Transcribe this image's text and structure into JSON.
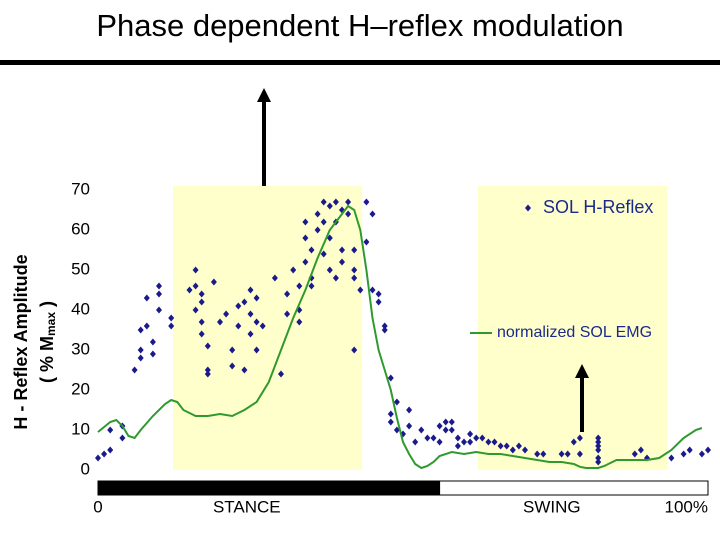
{
  "chart_data": {
    "type": "scatter",
    "title": "Phase dependent H–reflex modulation",
    "ylabel": "H - Reflex Amplitude",
    "ylabel2": {
      "prefix": "( % M",
      "subscript": "max",
      "suffix": " )"
    },
    "xlim": [
      0,
      100
    ],
    "ylim": [
      0,
      70
    ],
    "yticks": [
      0,
      10,
      20,
      30,
      40,
      50,
      60,
      70
    ],
    "xticks": [
      0,
      {
        "value": 100,
        "label": "100%"
      }
    ],
    "shaded_regions": [
      [
        12.3,
        43.3
      ],
      [
        62.3,
        93.3
      ]
    ],
    "shade_color": "#ffffcc",
    "phases": [
      {
        "label": "STANCE",
        "range": [
          0,
          56
        ],
        "color": "#000000"
      },
      {
        "label": "SWING",
        "range": [
          56,
          100
        ],
        "color": "#ffffff"
      }
    ],
    "series": [
      {
        "name": "SOL H-Reflex",
        "type": "scatter",
        "color": "#1a1a8c",
        "x": [
          0,
          1,
          2,
          2,
          4,
          4,
          6,
          7,
          7,
          7,
          8,
          8,
          9,
          9,
          10,
          10,
          10,
          12,
          12,
          15,
          16,
          16,
          16,
          17,
          17,
          17,
          17,
          18,
          18,
          18,
          19,
          20,
          21,
          22,
          22,
          23,
          23,
          24,
          24,
          25,
          25,
          25,
          26,
          26,
          26,
          27,
          29,
          30,
          31,
          31,
          32,
          33,
          33,
          33,
          34,
          34,
          34,
          35,
          35,
          35,
          36,
          36,
          37,
          37,
          37,
          38,
          38,
          38,
          39,
          39,
          39,
          40,
          40,
          40,
          41,
          41,
          42,
          42,
          42,
          42,
          43,
          44,
          44,
          45,
          45,
          46,
          46,
          47,
          47,
          48,
          48,
          48,
          49,
          49,
          50,
          51,
          51,
          52,
          53,
          54,
          55,
          56,
          56,
          57,
          57,
          58,
          58,
          59,
          59,
          60,
          61,
          61,
          62,
          63,
          64,
          65,
          66,
          67,
          68,
          69,
          70,
          72,
          73,
          76,
          77,
          78,
          79,
          79,
          82,
          82,
          82,
          82,
          82,
          82,
          88,
          89,
          90,
          94,
          96,
          97,
          99,
          100
        ],
        "values": [
          3,
          4,
          5,
          10,
          11,
          8,
          25,
          28,
          30,
          35,
          43,
          36,
          32,
          29,
          44,
          46,
          40,
          38,
          36,
          45,
          50,
          46,
          40,
          34,
          37,
          44,
          42,
          25,
          24,
          31,
          47,
          37,
          39,
          30,
          26,
          41,
          36,
          25,
          42,
          34,
          39,
          45,
          43,
          30,
          37,
          36,
          48,
          24,
          39,
          44,
          50,
          40,
          46,
          37,
          58,
          52,
          62,
          46,
          55,
          48,
          64,
          60,
          67,
          54,
          62,
          66,
          58,
          50,
          67,
          62,
          48,
          55,
          52,
          65,
          67,
          64,
          55,
          48,
          50,
          30,
          45,
          67,
          57,
          64,
          45,
          44,
          42,
          35,
          36,
          23,
          14,
          12,
          17,
          10,
          9,
          11,
          15,
          7,
          10,
          8,
          8,
          11,
          7,
          10,
          12,
          12,
          10,
          8,
          6,
          7,
          9,
          7,
          8,
          8,
          7,
          7,
          6,
          6,
          5,
          6,
          5,
          4,
          4,
          4,
          4,
          7,
          8,
          4,
          6,
          7,
          8,
          5,
          3,
          2,
          4,
          5,
          3,
          3,
          4,
          5,
          4,
          5
        ]
      },
      {
        "name": "normalized SOL EMG",
        "type": "line",
        "color": "#2e9a2e",
        "x": [
          0,
          2,
          3,
          4,
          5,
          6,
          7,
          9,
          11,
          12,
          13,
          14,
          16,
          18,
          20,
          22,
          24,
          26,
          28,
          30,
          32,
          34,
          36,
          38,
          40,
          41,
          42,
          43,
          44,
          45,
          46,
          47,
          48,
          49,
          50,
          51,
          52,
          53,
          54,
          55,
          56,
          58,
          60,
          62,
          64,
          66,
          68,
          70,
          72,
          74,
          76,
          78,
          79,
          80,
          82,
          83,
          85,
          88,
          90,
          92,
          94,
          96,
          98,
          99
        ],
        "values": [
          9.5,
          12,
          12.5,
          11,
          8.5,
          8,
          10,
          13.5,
          16.5,
          17.5,
          17,
          15,
          13.5,
          13.5,
          14,
          13.5,
          15,
          17,
          22,
          30,
          38,
          45,
          53,
          60,
          64,
          66,
          65,
          60,
          50,
          38,
          30,
          25,
          20,
          13,
          7,
          4,
          1.5,
          0.5,
          1,
          2,
          3.5,
          4.5,
          4,
          4.5,
          4,
          4,
          3.5,
          3,
          2.5,
          2,
          2,
          1.5,
          0.8,
          0.5,
          0.5,
          1,
          2.5,
          2.5,
          2.5,
          3,
          5,
          8,
          10,
          10.5
        ]
      }
    ]
  }
}
